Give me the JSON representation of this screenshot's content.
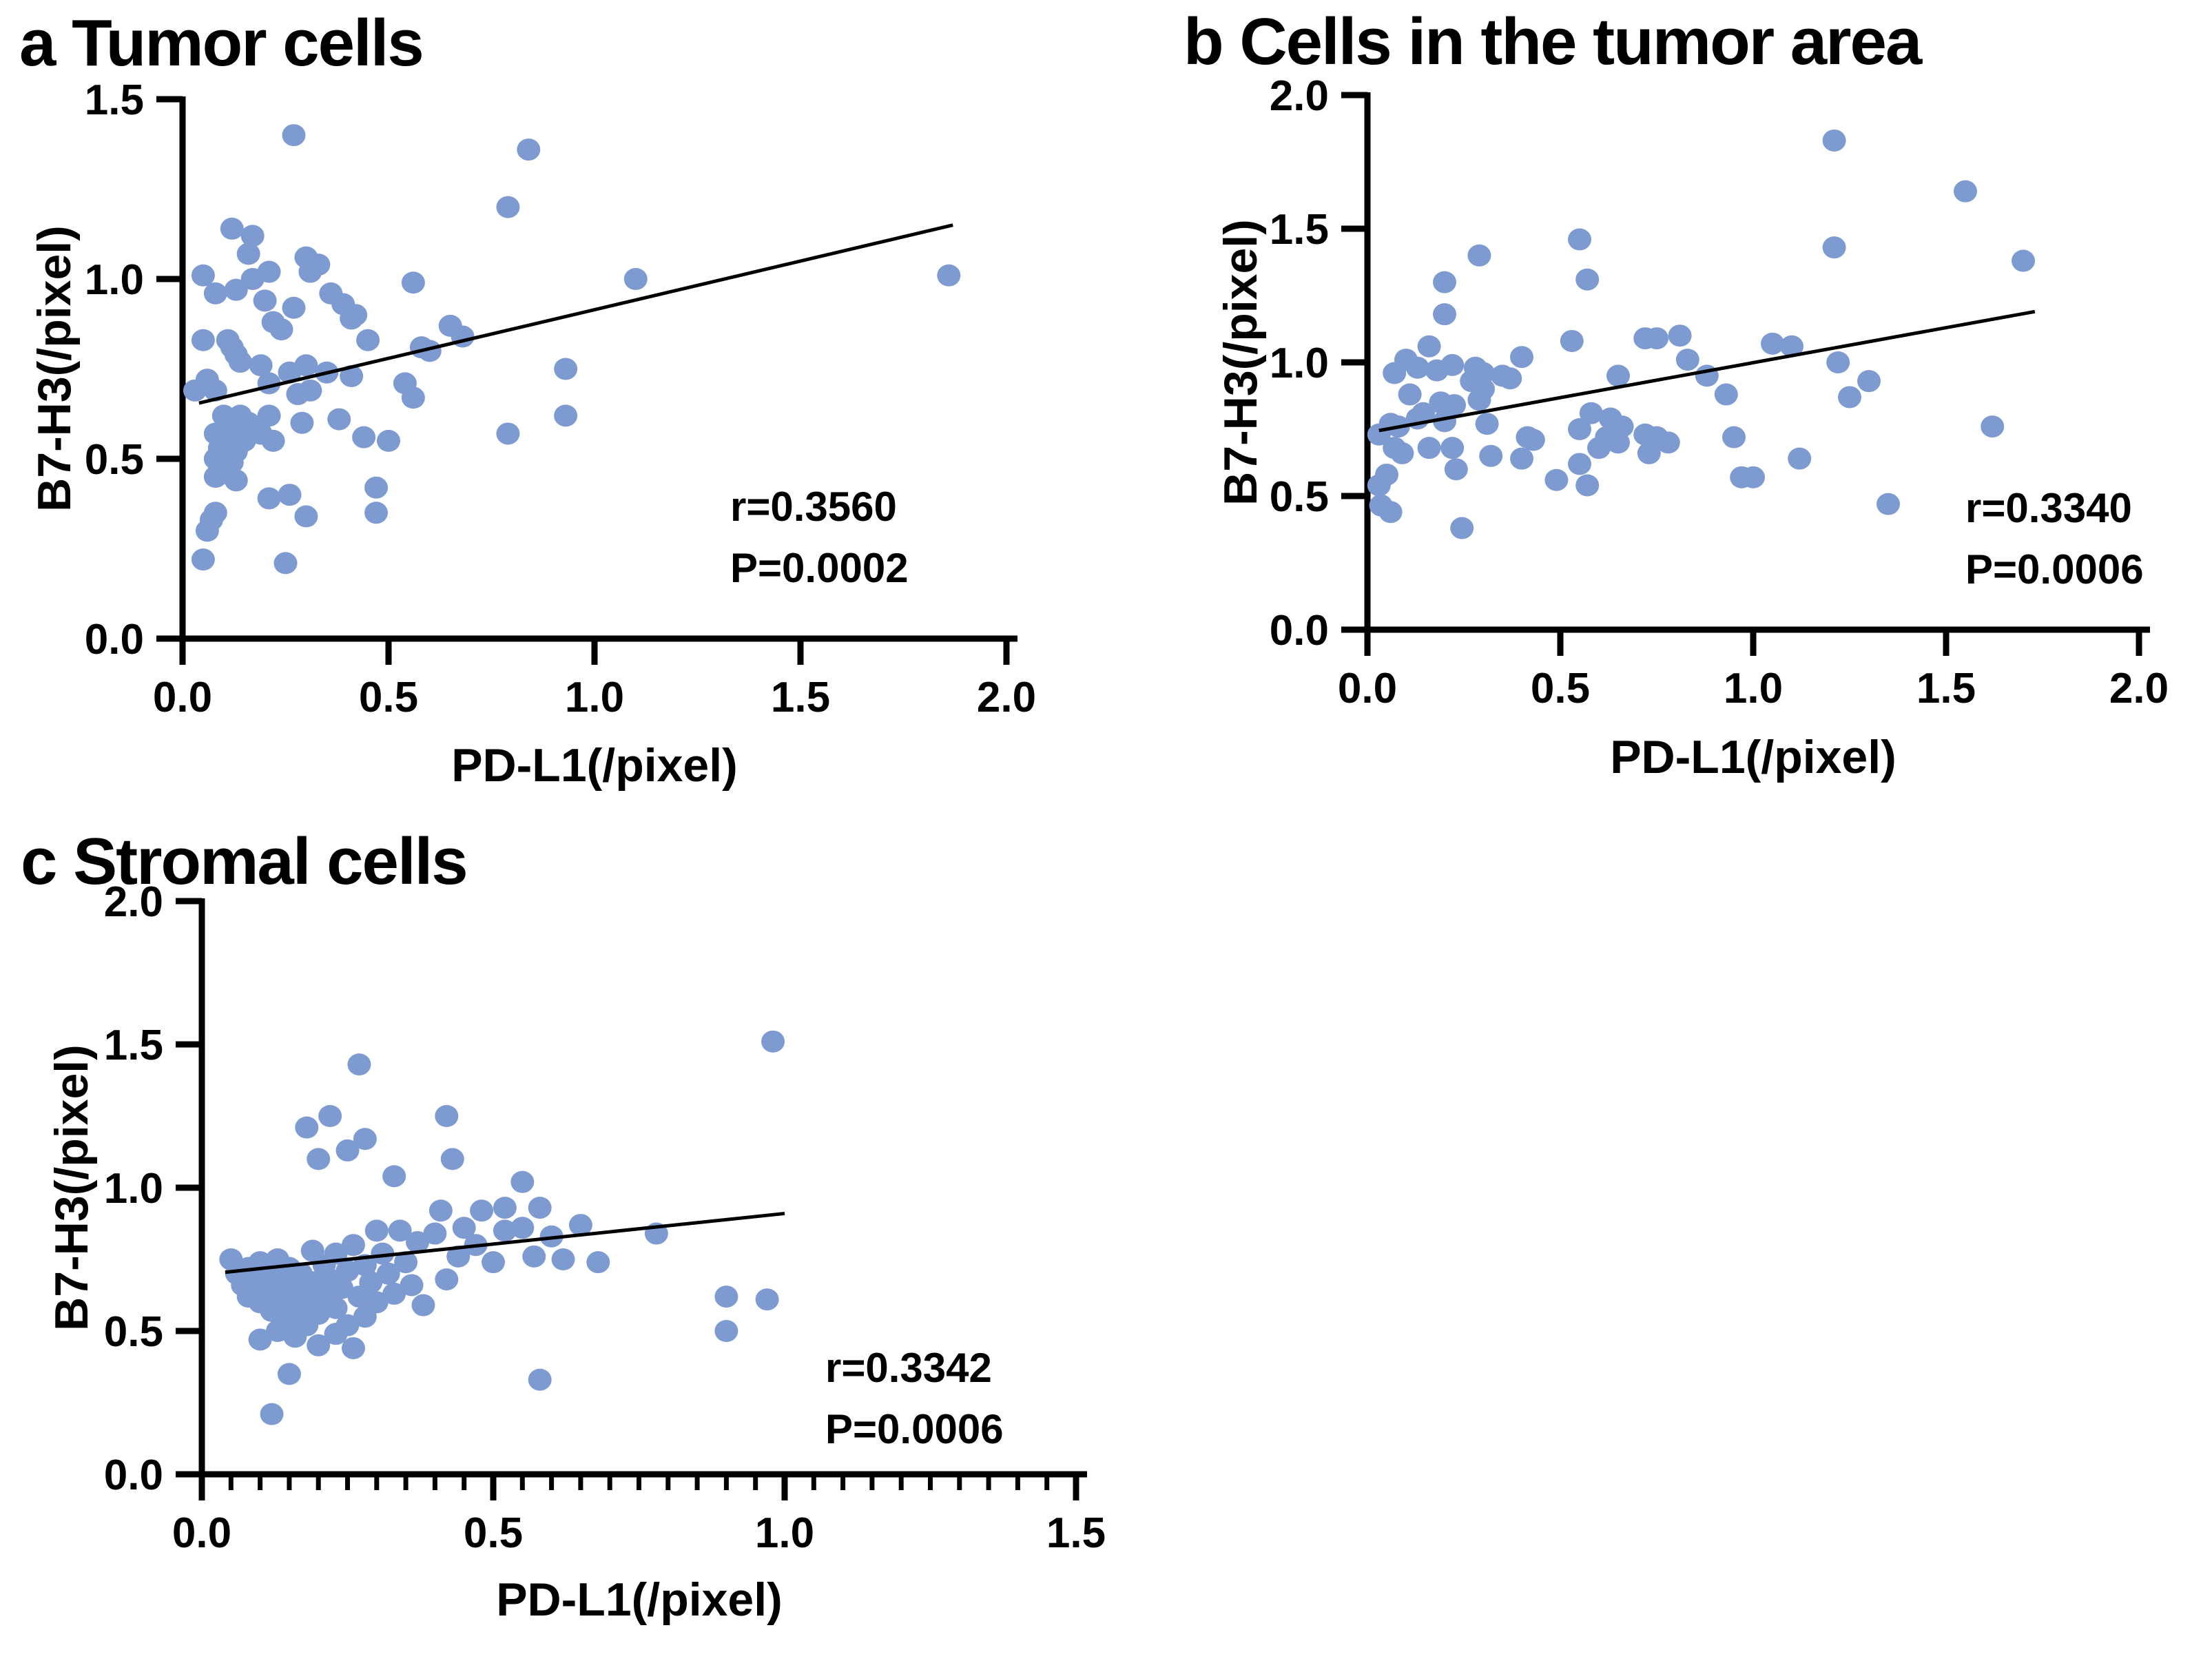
{
  "page": {
    "background": "#ffffff"
  },
  "style": {
    "dot_color": "#7D9AD1",
    "trend_color": "#000000",
    "axis_color": "#000000",
    "text_color": "#000000"
  },
  "chart_data": [
    {
      "type": "scatter",
      "panel": "a",
      "title": "a Tumor cells",
      "xlabel": "PD-L1(/pixel)",
      "ylabel": "B7-H3(/pixel)",
      "xlim": [
        0,
        2.0
      ],
      "ylim": [
        0,
        1.5
      ],
      "xticks": [
        0.0,
        0.5,
        1.0,
        1.5,
        2.0
      ],
      "yticks": [
        0.0,
        0.5,
        1.0,
        1.5
      ],
      "x_minor_step": null,
      "grid": false,
      "legend": null,
      "annotation": {
        "lines": [
          "r=0.3560",
          "P=0.0002"
        ],
        "x": 1.33,
        "y": 0.44
      },
      "trend": {
        "x1": 0.04,
        "y1": 0.655,
        "x2": 1.87,
        "y2": 1.15
      },
      "points": [
        [
          0.05,
          0.22
        ],
        [
          0.25,
          0.21
        ],
        [
          0.06,
          0.3
        ],
        [
          0.07,
          0.33
        ],
        [
          0.08,
          0.35
        ],
        [
          0.21,
          0.39
        ],
        [
          0.26,
          0.4
        ],
        [
          0.3,
          0.34
        ],
        [
          0.47,
          0.35
        ],
        [
          0.47,
          0.42
        ],
        [
          0.13,
          0.44
        ],
        [
          0.08,
          0.45
        ],
        [
          0.1,
          0.46
        ],
        [
          0.09,
          0.48
        ],
        [
          0.11,
          0.47
        ],
        [
          0.12,
          0.49
        ],
        [
          0.08,
          0.5
        ],
        [
          0.1,
          0.5
        ],
        [
          0.11,
          0.52
        ],
        [
          0.13,
          0.52
        ],
        [
          0.09,
          0.53
        ],
        [
          0.12,
          0.54
        ],
        [
          0.1,
          0.55
        ],
        [
          0.15,
          0.55
        ],
        [
          0.13,
          0.56
        ],
        [
          0.08,
          0.57
        ],
        [
          0.11,
          0.58
        ],
        [
          0.14,
          0.58
        ],
        [
          0.19,
          0.57
        ],
        [
          0.22,
          0.55
        ],
        [
          0.12,
          0.6
        ],
        [
          0.16,
          0.6
        ],
        [
          0.1,
          0.62
        ],
        [
          0.14,
          0.62
        ],
        [
          0.21,
          0.62
        ],
        [
          0.29,
          0.6
        ],
        [
          0.38,
          0.61
        ],
        [
          0.44,
          0.56
        ],
        [
          0.5,
          0.55
        ],
        [
          0.03,
          0.69
        ],
        [
          0.06,
          0.72
        ],
        [
          0.08,
          0.69
        ],
        [
          0.28,
          0.68
        ],
        [
          0.31,
          0.69
        ],
        [
          0.19,
          0.76
        ],
        [
          0.21,
          0.71
        ],
        [
          0.26,
          0.74
        ],
        [
          0.3,
          0.76
        ],
        [
          0.35,
          0.74
        ],
        [
          0.41,
          0.73
        ],
        [
          0.54,
          0.71
        ],
        [
          0.56,
          0.67
        ],
        [
          0.05,
          0.83
        ],
        [
          0.11,
          0.83
        ],
        [
          0.12,
          0.81
        ],
        [
          0.13,
          0.79
        ],
        [
          0.14,
          0.77
        ],
        [
          0.45,
          0.83
        ],
        [
          0.58,
          0.81
        ],
        [
          0.6,
          0.8
        ],
        [
          0.65,
          0.87
        ],
        [
          0.68,
          0.84
        ],
        [
          0.22,
          0.88
        ],
        [
          0.24,
          0.86
        ],
        [
          0.93,
          0.75
        ],
        [
          0.93,
          0.62
        ],
        [
          0.79,
          0.57
        ],
        [
          0.2,
          0.94
        ],
        [
          0.27,
          0.92
        ],
        [
          0.08,
          0.96
        ],
        [
          0.13,
          0.97
        ],
        [
          0.17,
          1.0
        ],
        [
          0.21,
          1.02
        ],
        [
          0.31,
          1.02
        ],
        [
          0.36,
          0.96
        ],
        [
          0.39,
          0.93
        ],
        [
          0.41,
          0.89
        ],
        [
          0.42,
          0.9
        ],
        [
          0.56,
          0.99
        ],
        [
          0.05,
          1.01
        ],
        [
          0.3,
          1.06
        ],
        [
          0.33,
          1.04
        ],
        [
          1.1,
          1.0
        ],
        [
          1.86,
          1.01
        ],
        [
          0.12,
          1.14
        ],
        [
          0.17,
          1.12
        ],
        [
          0.16,
          1.07
        ],
        [
          0.79,
          1.2
        ],
        [
          0.84,
          1.36
        ],
        [
          0.27,
          1.4
        ]
      ]
    },
    {
      "type": "scatter",
      "panel": "b",
      "title": "b Cells in the tumor area",
      "xlabel": "PD-L1(/pixel)",
      "ylabel": "B7-H3(/pixel)",
      "xlim": [
        0,
        2.0
      ],
      "ylim": [
        0,
        2.0
      ],
      "xticks": [
        0.0,
        0.5,
        1.0,
        1.5,
        2.0
      ],
      "yticks": [
        0.0,
        0.5,
        1.0,
        1.5,
        2.0
      ],
      "x_minor_step": null,
      "grid": false,
      "legend": null,
      "annotation": {
        "lines": [
          "r=0.3340",
          "P=0.0006"
        ],
        "x": 1.55,
        "y": 0.56
      },
      "trend": {
        "x1": 0.03,
        "y1": 0.745,
        "x2": 1.73,
        "y2": 1.19
      },
      "points": [
        [
          1.21,
          1.83
        ],
        [
          1.55,
          1.64
        ],
        [
          0.55,
          1.46
        ],
        [
          0.29,
          1.4
        ],
        [
          1.21,
          1.43
        ],
        [
          1.7,
          1.38
        ],
        [
          0.57,
          1.31
        ],
        [
          0.2,
          1.3
        ],
        [
          0.2,
          1.18
        ],
        [
          0.53,
          1.08
        ],
        [
          0.72,
          1.09
        ],
        [
          0.75,
          1.09
        ],
        [
          0.81,
          1.1
        ],
        [
          0.83,
          1.01
        ],
        [
          1.05,
          1.07
        ],
        [
          1.1,
          1.06
        ],
        [
          1.22,
          1.0
        ],
        [
          0.16,
          1.06
        ],
        [
          0.1,
          1.01
        ],
        [
          0.4,
          1.02
        ],
        [
          0.07,
          0.96
        ],
        [
          0.13,
          0.98
        ],
        [
          0.18,
          0.97
        ],
        [
          0.22,
          0.99
        ],
        [
          0.28,
          0.98
        ],
        [
          0.3,
          0.96
        ],
        [
          0.35,
          0.95
        ],
        [
          0.27,
          0.93
        ],
        [
          0.3,
          0.9
        ],
        [
          0.37,
          0.94
        ],
        [
          0.65,
          0.95
        ],
        [
          0.88,
          0.95
        ],
        [
          0.93,
          0.88
        ],
        [
          1.3,
          0.93
        ],
        [
          0.03,
          0.73
        ],
        [
          0.06,
          0.77
        ],
        [
          0.08,
          0.76
        ],
        [
          0.07,
          0.68
        ],
        [
          0.09,
          0.66
        ],
        [
          0.11,
          0.88
        ],
        [
          0.13,
          0.79
        ],
        [
          0.145,
          0.81
        ],
        [
          0.16,
          0.68
        ],
        [
          0.19,
          0.85
        ],
        [
          0.2,
          0.78
        ],
        [
          0.225,
          0.84
        ],
        [
          0.22,
          0.68
        ],
        [
          0.23,
          0.6
        ],
        [
          0.29,
          0.86
        ],
        [
          0.31,
          0.77
        ],
        [
          0.32,
          0.65
        ],
        [
          0.415,
          0.72
        ],
        [
          0.43,
          0.71
        ],
        [
          0.4,
          0.64
        ],
        [
          0.49,
          0.56
        ],
        [
          0.55,
          0.75
        ],
        [
          0.58,
          0.81
        ],
        [
          0.6,
          0.68
        ],
        [
          0.72,
          0.73
        ],
        [
          0.75,
          0.72
        ],
        [
          0.78,
          0.7
        ],
        [
          0.73,
          0.66
        ],
        [
          0.55,
          0.62
        ],
        [
          0.57,
          0.54
        ],
        [
          0.62,
          0.72
        ],
        [
          0.63,
          0.79
        ],
        [
          0.65,
          0.7
        ],
        [
          0.66,
          0.76
        ],
        [
          0.95,
          0.72
        ],
        [
          1.0,
          0.57
        ],
        [
          0.97,
          0.57
        ],
        [
          1.12,
          0.64
        ],
        [
          1.25,
          0.87
        ],
        [
          1.62,
          0.76
        ],
        [
          0.03,
          0.54
        ],
        [
          0.035,
          0.465
        ],
        [
          0.06,
          0.44
        ],
        [
          0.245,
          0.38
        ],
        [
          1.35,
          0.47
        ],
        [
          0.05,
          0.58
        ]
      ]
    },
    {
      "type": "scatter",
      "panel": "c",
      "title": "c Stromal cells",
      "xlabel": "PD-L1(/pixel)",
      "ylabel": "B7-H3(/pixel)",
      "xlim": [
        0,
        1.5
      ],
      "ylim": [
        0,
        2.0
      ],
      "xticks": [
        0.0,
        0.5,
        1.0,
        1.5
      ],
      "yticks": [
        0.0,
        0.5,
        1.0,
        1.5,
        2.0
      ],
      "x_minor_step": 0.05,
      "grid": false,
      "legend": null,
      "annotation": {
        "lines": [
          "r=0.3342",
          "P=0.0006"
        ],
        "x": 1.07,
        "y": 0.47
      },
      "trend": {
        "x1": 0.04,
        "y1": 0.705,
        "x2": 1.0,
        "y2": 0.91
      },
      "points": [
        [
          0.98,
          1.51
        ],
        [
          0.27,
          1.43
        ],
        [
          0.42,
          1.25
        ],
        [
          0.22,
          1.25
        ],
        [
          0.18,
          1.21
        ],
        [
          0.28,
          1.17
        ],
        [
          0.25,
          1.13
        ],
        [
          0.43,
          1.1
        ],
        [
          0.2,
          1.1
        ],
        [
          0.55,
          1.02
        ],
        [
          0.33,
          1.04
        ],
        [
          0.52,
          0.93
        ],
        [
          0.58,
          0.93
        ],
        [
          0.41,
          0.92
        ],
        [
          0.48,
          0.92
        ],
        [
          0.05,
          0.75
        ],
        [
          0.06,
          0.7
        ],
        [
          0.07,
          0.66
        ],
        [
          0.08,
          0.72
        ],
        [
          0.08,
          0.62
        ],
        [
          0.09,
          0.68
        ],
        [
          0.1,
          0.74
        ],
        [
          0.1,
          0.6
        ],
        [
          0.11,
          0.65
        ],
        [
          0.12,
          0.7
        ],
        [
          0.12,
          0.57
        ],
        [
          0.13,
          0.75
        ],
        [
          0.13,
          0.63
        ],
        [
          0.14,
          0.68
        ],
        [
          0.15,
          0.72
        ],
        [
          0.15,
          0.58
        ],
        [
          0.16,
          0.64
        ],
        [
          0.17,
          0.7
        ],
        [
          0.17,
          0.54
        ],
        [
          0.18,
          0.61
        ],
        [
          0.19,
          0.67
        ],
        [
          0.19,
          0.78
        ],
        [
          0.2,
          0.56
        ],
        [
          0.21,
          0.73
        ],
        [
          0.21,
          0.63
        ],
        [
          0.22,
          0.68
        ],
        [
          0.23,
          0.58
        ],
        [
          0.23,
          0.77
        ],
        [
          0.24,
          0.65
        ],
        [
          0.25,
          0.71
        ],
        [
          0.25,
          0.52
        ],
        [
          0.26,
          0.8
        ],
        [
          0.27,
          0.62
        ],
        [
          0.28,
          0.73
        ],
        [
          0.28,
          0.55
        ],
        [
          0.29,
          0.67
        ],
        [
          0.3,
          0.85
        ],
        [
          0.3,
          0.6
        ],
        [
          0.31,
          0.77
        ],
        [
          0.32,
          0.7
        ],
        [
          0.33,
          0.63
        ],
        [
          0.34,
          0.85
        ],
        [
          0.35,
          0.74
        ],
        [
          0.36,
          0.66
        ],
        [
          0.37,
          0.81
        ],
        [
          0.38,
          0.59
        ],
        [
          0.4,
          0.84
        ],
        [
          0.42,
          0.68
        ],
        [
          0.44,
          0.76
        ],
        [
          0.45,
          0.86
        ],
        [
          0.47,
          0.8
        ],
        [
          0.5,
          0.74
        ],
        [
          0.52,
          0.85
        ],
        [
          0.55,
          0.86
        ],
        [
          0.57,
          0.76
        ],
        [
          0.6,
          0.83
        ],
        [
          0.62,
          0.75
        ],
        [
          0.65,
          0.87
        ],
        [
          0.68,
          0.74
        ],
        [
          0.78,
          0.84
        ],
        [
          0.1,
          0.47
        ],
        [
          0.13,
          0.5
        ],
        [
          0.16,
          0.48
        ],
        [
          0.2,
          0.45
        ],
        [
          0.23,
          0.49
        ],
        [
          0.26,
          0.44
        ],
        [
          0.14,
          0.54
        ],
        [
          0.18,
          0.52
        ],
        [
          0.15,
          0.35
        ],
        [
          0.12,
          0.21
        ],
        [
          0.58,
          0.33
        ],
        [
          0.9,
          0.62
        ],
        [
          0.97,
          0.61
        ],
        [
          0.9,
          0.5
        ]
      ]
    }
  ]
}
